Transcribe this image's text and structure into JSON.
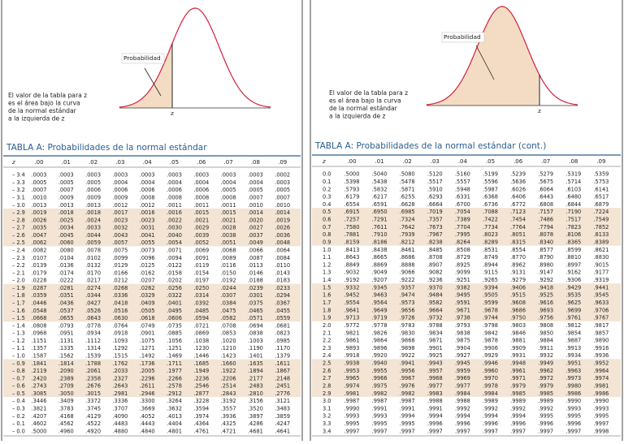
{
  "left": {
    "figure": {
      "label": "Probabilidad",
      "caption": [
        "El valor de la tabla para z",
        "es el área bajo la curva",
        "de la normal estándar",
        "a la izquierda de z"
      ],
      "z": "z"
    },
    "table": {
      "title": "TABLA   A:   Probabilidades de la normal estándar",
      "header": [
        "z",
        ".00",
        ".01",
        ".02",
        ".03",
        ".04",
        ".05",
        ".06",
        ".07",
        ".08",
        ".09"
      ],
      "rows": [
        [
          "– 3.4",
          ".0003",
          ".0003",
          ".0003",
          ".0003",
          ".0003",
          ".0003",
          ".0003",
          ".0003",
          ".0003",
          ".0002"
        ],
        [
          "– 3.3",
          ".0005",
          ".0005",
          ".0005",
          ".0004",
          ".0004",
          ".0004",
          ".0004",
          ".0004",
          ".0004",
          ".0003"
        ],
        [
          "– 3.2",
          ".0007",
          ".0007",
          ".0006",
          ".0006",
          ".0006",
          ".0006",
          ".0006",
          ".0005",
          ".0005",
          ".0005"
        ],
        [
          "– 3.1",
          ".0010",
          ".0009",
          ".0009",
          ".0009",
          ".0008",
          ".0008",
          ".0008",
          ".0008",
          ".0007",
          ".0007"
        ],
        [
          "– 3.0",
          ".0013",
          ".0013",
          ".0013",
          ".0012",
          ".0012",
          ".0011",
          ".0011",
          ".0011",
          ".0010",
          ".0010"
        ],
        [
          "– 2.9",
          ".0019",
          ".0018",
          ".0018",
          ".0017",
          ".0016",
          ".0016",
          ".0015",
          ".0015",
          ".0014",
          ".0014"
        ],
        [
          "– 2.8",
          ".0026",
          ".0025",
          ".0024",
          ".0023",
          ".0023",
          ".0022",
          ".0021",
          ".0021",
          ".0020",
          ".0019"
        ],
        [
          "– 2.7",
          ".0035",
          ".0034",
          ".0033",
          ".0032",
          ".0031",
          ".0030",
          ".0029",
          ".0028",
          ".0027",
          ".0026"
        ],
        [
          "– 2.6",
          ".0047",
          ".0045",
          ".0044",
          ".0043",
          ".0041",
          ".0040",
          ".0039",
          ".0038",
          ".0037",
          ".0036"
        ],
        [
          "– 2.5",
          ".0062",
          ".0060",
          ".0059",
          ".0057",
          ".0055",
          ".0054",
          ".0052",
          ".0051",
          ".0049",
          ".0048"
        ],
        [
          "– 2.4",
          ".0082",
          ".0080",
          ".0078",
          ".0075",
          ".0073",
          ".0071",
          ".0069",
          ".0068",
          ".0066",
          ".0064"
        ],
        [
          "– 2.3",
          ".0107",
          ".0104",
          ".0102",
          ".0099",
          ".0096",
          ".0094",
          ".0091",
          ".0089",
          ".0087",
          ".0084"
        ],
        [
          "– 2.2",
          ".0139",
          ".0136",
          ".0132",
          ".0129",
          ".0125",
          ".0122",
          ".0119",
          ".0116",
          ".0113",
          ".0110"
        ],
        [
          "– 2.1",
          ".0179",
          ".0174",
          ".0170",
          ".0166",
          ".0162",
          ".0158",
          ".0154",
          ".0150",
          ".0146",
          ".0143"
        ],
        [
          "– 2.0",
          ".0228",
          ".0222",
          ".0217",
          ".0212",
          ".0207",
          ".0202",
          ".0197",
          ".0192",
          ".0188",
          ".0183"
        ],
        [
          "– 1.9",
          ".0287",
          ".0281",
          ".0274",
          ".0268",
          ".0262",
          ".0256",
          ".0250",
          ".0244",
          ".0239",
          ".0233"
        ],
        [
          "– 1.8",
          ".0359",
          ".0351",
          ".0344",
          ".0336",
          ".0329",
          ".0322",
          ".0314",
          ".0307",
          ".0301",
          ".0294"
        ],
        [
          "– 1.7",
          ".0446",
          ".0436",
          ".0427",
          ".0418",
          ".0409",
          ".0401",
          ".0392",
          ".0384",
          ".0375",
          ".0367"
        ],
        [
          "– 1.6",
          ".0548",
          ".0537",
          ".0526",
          ".0516",
          ".0505",
          ".0495",
          ".0485",
          ".0475",
          ".0465",
          ".0455"
        ],
        [
          "– 1.5",
          ".0668",
          ".0655",
          ".0643",
          ".0630",
          ".0618",
          ".0606",
          ".0594",
          ".0582",
          ".0571",
          ".0559"
        ],
        [
          "– 1.4",
          ".0808",
          ".0793",
          ".0778",
          ".0764",
          ".0749",
          ".0735",
          ".0721",
          ".0708",
          ".0694",
          ".0681"
        ],
        [
          "– 1.3",
          ".0968",
          ".0951",
          ".0934",
          ".0918",
          ".0901",
          ".0885",
          ".0869",
          ".0853",
          ".0838",
          ".0823"
        ],
        [
          "– 1.2",
          ".1151",
          ".1131",
          ".1112",
          ".1093",
          ".1075",
          ".1056",
          ".1038",
          ".1020",
          ".1003",
          ".0985"
        ],
        [
          "– 1.1",
          ".1357",
          ".1335",
          ".1314",
          ".1292",
          ".1271",
          ".1251",
          ".1230",
          ".1210",
          ".1190",
          ".1170"
        ],
        [
          "– 1.0",
          ".1587",
          ".1562",
          ".1539",
          ".1515",
          ".1492",
          ".1469",
          ".1446",
          ".1423",
          ".1401",
          ".1379"
        ],
        [
          "– 0.9",
          ".1841",
          ".1814",
          ".1788",
          ".1762",
          ".1736",
          ".1711",
          ".1685",
          ".1660",
          ".1635",
          ".1611"
        ],
        [
          "– 0.8",
          ".2119",
          ".2090",
          ".2061",
          ".2033",
          ".2005",
          ".1977",
          ".1949",
          ".1922",
          ".1894",
          ".1867"
        ],
        [
          "– 0.7",
          ".2420",
          ".2389",
          ".2358",
          ".2327",
          ".2296",
          ".2266",
          ".2236",
          ".2206",
          ".2177",
          ".2148"
        ],
        [
          "– 0.6",
          ".2743",
          ".2709",
          ".2676",
          ".2643",
          ".2611",
          ".2578",
          ".2546",
          ".2514",
          ".2483",
          ".2451"
        ],
        [
          "– 0.5",
          ".3085",
          ".3050",
          ".3015",
          ".2981",
          ".2946",
          ".2912",
          ".2877",
          ".2843",
          ".2810",
          ".2776"
        ],
        [
          "– 0.4",
          ".3446",
          ".3409",
          ".3372",
          ".3336",
          ".3300",
          ".3264",
          ".3228",
          ".3192",
          ".3156",
          ".3121"
        ],
        [
          "– 0.3",
          ".3821",
          ".3783",
          ".3745",
          ".3707",
          ".3669",
          ".3632",
          ".3594",
          ".3557",
          ".3520",
          ".3483"
        ],
        [
          "– 0.2",
          ".4207",
          ".4168",
          ".4129",
          ".4090",
          ".4052",
          ".4013",
          ".3974",
          ".3936",
          ".3897",
          ".3859"
        ],
        [
          "– 0.1",
          ".4602",
          ".4562",
          ".4522",
          ".4483",
          ".4443",
          ".4404",
          ".4364",
          ".4325",
          ".4286",
          ".4247"
        ],
        [
          "– 0.0",
          ".5000",
          ".4960",
          ".4920",
          ".4880",
          ".4840",
          ".4801",
          ".4761",
          ".4721",
          ".4681",
          ".4641"
        ]
      ]
    }
  },
  "right": {
    "figure": {
      "label": "Probabilidad",
      "caption": [
        "El valor de la tabla para z",
        "es el área bajo la curva",
        "de la normal estándar",
        "a la izquierda de z"
      ],
      "z": "z"
    },
    "table": {
      "title": "TABLA A: Probabilidades de la normal estándar (cont.)",
      "header": [
        "z",
        ".00",
        ".01",
        ".02",
        ".03",
        ".04",
        ".05",
        ".06",
        ".07",
        ".08",
        ".09"
      ],
      "rows": [
        [
          "0.0",
          ".5000",
          ".5040",
          ".5080",
          ".5120",
          ".5160",
          ".5199",
          ".5239",
          ".5279",
          ".5319",
          ".5359"
        ],
        [
          "0.1",
          ".5398",
          ".5438",
          ".5478",
          ".5517",
          ".5557",
          ".5596",
          ".5636",
          ".5675",
          ".5714",
          ".5753"
        ],
        [
          "0.2",
          ".5793",
          ".5832",
          ".5871",
          ".5910",
          ".5948",
          ".5987",
          ".6026",
          ".6064",
          ".6103",
          ".6141"
        ],
        [
          "0.3",
          ".6179",
          ".6217",
          ".6255",
          ".6293",
          ".6331",
          ".6368",
          ".6406",
          ".6443",
          ".6480",
          ".6517"
        ],
        [
          "0.4",
          ".6554",
          ".6591",
          ".6628",
          ".6664",
          ".6700",
          ".6736",
          ".6772",
          ".6808",
          ".6844",
          ".6879"
        ],
        [
          "0.5",
          ".6915",
          ".6950",
          ".6985",
          ".7019",
          ".7054",
          ".7088",
          ".7123",
          ".7157",
          ".7190",
          ".7224"
        ],
        [
          "0.6",
          ".7257",
          ".7291",
          ".7324",
          ".7357",
          ".7389",
          ".7422",
          ".7454",
          ".7486",
          ".7517",
          ".7549"
        ],
        [
          "0.7",
          ".7580",
          ".7611",
          ".7642",
          ".7673",
          ".7704",
          ".7734",
          ".7764",
          ".7794",
          ".7823",
          ".7852"
        ],
        [
          "0.8",
          ".7881",
          ".7910",
          ".7939",
          ".7967",
          ".7995",
          ".8023",
          ".8051",
          ".8078",
          ".8106",
          ".8133"
        ],
        [
          "0.9",
          ".8159",
          ".8186",
          ".8212",
          ".8238",
          ".8264",
          ".8289",
          ".8315",
          ".8340",
          ".8365",
          ".8389"
        ],
        [
          "1.0",
          ".8413",
          ".8438",
          ".8461",
          ".8485",
          ".8508",
          ".8531",
          ".8554",
          ".8577",
          ".8599",
          ".8621"
        ],
        [
          "1.1",
          ".8643",
          ".8665",
          ".8686",
          ".8708",
          ".8729",
          ".8749",
          ".8770",
          ".8790",
          ".8810",
          ".8830"
        ],
        [
          "1.2",
          ".8849",
          ".8869",
          ".8888",
          ".8907",
          ".8925",
          ".8944",
          ".8962",
          ".8980",
          ".8997",
          ".9015"
        ],
        [
          "1.3",
          ".9032",
          ".9049",
          ".9066",
          ".9082",
          ".9099",
          ".9115",
          ".9131",
          ".9147",
          ".9162",
          ".9177"
        ],
        [
          "1.4",
          ".9192",
          ".9207",
          ".9222",
          ".9236",
          ".9251",
          ".9265",
          ".9279",
          ".9292",
          ".9306",
          ".9319"
        ],
        [
          "1.5",
          ".9332",
          ".9345",
          ".9357",
          ".9370",
          ".9382",
          ".9394",
          ".9406",
          ".9418",
          ".9429",
          ".9441"
        ],
        [
          "1.6",
          ".9452",
          ".9463",
          ".9474",
          ".9484",
          ".9495",
          ".9505",
          ".9515",
          ".9525",
          ".9535",
          ".9545"
        ],
        [
          "1.7",
          ".9554",
          ".9564",
          ".9573",
          ".9582",
          ".9591",
          ".9599",
          ".9608",
          ".9616",
          ".9625",
          ".9633"
        ],
        [
          "1.8",
          ".9641",
          ".9649",
          ".9656",
          ".9664",
          ".9671",
          ".9678",
          ".9686",
          ".9693",
          ".9699",
          ".9706"
        ],
        [
          "1.9",
          ".9713",
          ".9719",
          ".9726",
          ".9732",
          ".9738",
          ".9744",
          ".9750",
          ".9756",
          ".9761",
          ".9767"
        ],
        [
          "2.0",
          ".9772",
          ".9778",
          ".9783",
          ".9788",
          ".9793",
          ".9798",
          ".9803",
          ".9808",
          ".9812",
          ".9817"
        ],
        [
          "2.1",
          ".9821",
          ".9826",
          ".9830",
          ".9834",
          ".9838",
          ".9842",
          ".9846",
          ".9850",
          ".9854",
          ".9857"
        ],
        [
          "2.2",
          ".9861",
          ".9864",
          ".9868",
          ".9871",
          ".9875",
          ".9878",
          ".9881",
          ".9884",
          ".9887",
          ".9890"
        ],
        [
          "2.3",
          ".9893",
          ".9896",
          ".9898",
          ".9901",
          ".9904",
          ".9906",
          ".9909",
          ".9911",
          ".9913",
          ".9916"
        ],
        [
          "2.4",
          ".9918",
          ".9920",
          ".9922",
          ".9925",
          ".9927",
          ".9929",
          ".9931",
          ".9932",
          ".9934",
          ".9936"
        ],
        [
          "2.5",
          ".9938",
          ".9940",
          ".9941",
          ".9943",
          ".9945",
          ".9946",
          ".9948",
          ".9949",
          ".9951",
          ".9952"
        ],
        [
          "2.6",
          ".9953",
          ".9955",
          ".9956",
          ".9957",
          ".9959",
          ".9960",
          ".9961",
          ".9962",
          ".9963",
          ".9964"
        ],
        [
          "2.7",
          ".9965",
          ".9966",
          ".9967",
          ".9968",
          ".9969",
          ".9970",
          ".9971",
          ".9972",
          ".9973",
          ".9974"
        ],
        [
          "2.8",
          ".9974",
          ".9975",
          ".9976",
          ".9977",
          ".9977",
          ".9978",
          ".9979",
          ".9979",
          ".9980",
          ".9981"
        ],
        [
          "2.9",
          ".9981",
          ".9982",
          ".9982",
          ".9983",
          ".9984",
          ".9984",
          ".9985",
          ".9985",
          ".9986",
          ".9986"
        ],
        [
          "3.0",
          ".9987",
          ".9987",
          ".9987",
          ".9988",
          ".9988",
          ".9989",
          ".9989",
          ".9989",
          ".9990",
          ".9990"
        ],
        [
          "3.1",
          ".9990",
          ".9991",
          ".9991",
          ".9991",
          ".9992",
          ".9992",
          ".9992",
          ".9992",
          ".9993",
          ".9993"
        ],
        [
          "3.2",
          ".9993",
          ".9993",
          ".9994",
          ".9994",
          ".9994",
          ".9994",
          ".9994",
          ".9995",
          ".9995",
          ".9995"
        ],
        [
          "3.3",
          ".9995",
          ".9995",
          ".9995",
          ".9996",
          ".9996",
          ".9996",
          ".9996",
          ".9996",
          ".9996",
          ".9997"
        ],
        [
          "3.4",
          ".9997",
          ".9997",
          ".9997",
          ".9997",
          ".9997",
          ".9997",
          ".9997",
          ".9997",
          ".9997",
          ".9998"
        ]
      ]
    }
  }
}
